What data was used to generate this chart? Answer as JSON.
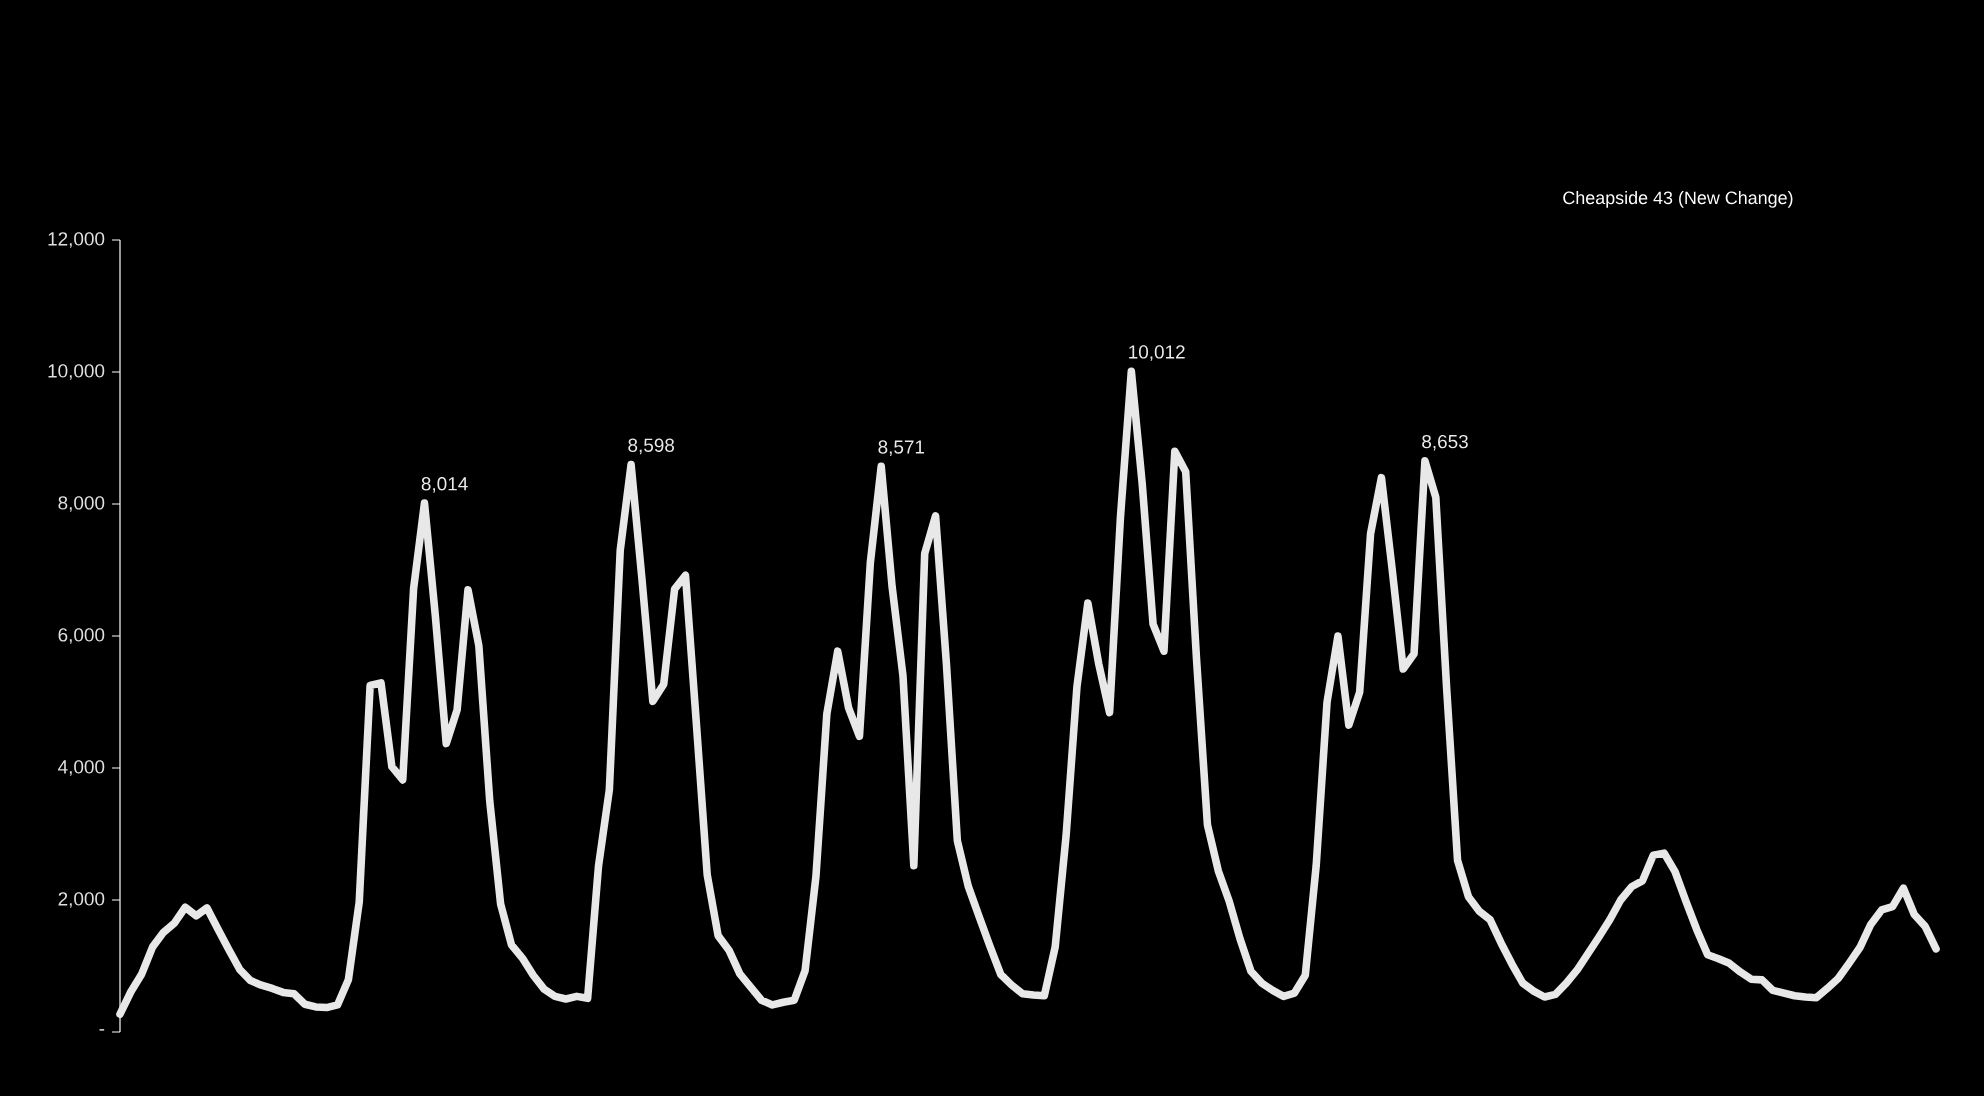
{
  "chart_data": {
    "type": "line",
    "title": "Cheapside 43 (New Change)",
    "categories": [
      null,
      null,
      null,
      null,
      null,
      null,
      null,
      null,
      null,
      null,
      null,
      null,
      null,
      null,
      null,
      null,
      null,
      null,
      null,
      null,
      null,
      null,
      null,
      null,
      null,
      null,
      null,
      null,
      null,
      null,
      null,
      null,
      null,
      null,
      null,
      null,
      null,
      null,
      null,
      null,
      null,
      null,
      null,
      null,
      null,
      null,
      null,
      null,
      null,
      null,
      null,
      null,
      null,
      null,
      null,
      null,
      null,
      null,
      null,
      null,
      null,
      null,
      null,
      null,
      null,
      null,
      null,
      null,
      null,
      null,
      null,
      null,
      null,
      null,
      null,
      null,
      null,
      null,
      null,
      null,
      null,
      null,
      null,
      null,
      null,
      null,
      null,
      null,
      null,
      null,
      null,
      null,
      null,
      null,
      null,
      null,
      null,
      null,
      null,
      null,
      null,
      null,
      null,
      null,
      null,
      null,
      null,
      null,
      null,
      null,
      null,
      null,
      null,
      null,
      null,
      null,
      null,
      null,
      null,
      null,
      null,
      null,
      null,
      null,
      null,
      null,
      null,
      null,
      null,
      null,
      null,
      null,
      null,
      null,
      null,
      null,
      null,
      null,
      null,
      null,
      null,
      null,
      null,
      null,
      null,
      null,
      null,
      null,
      null,
      null,
      null,
      null,
      null,
      null,
      null,
      null,
      null,
      null,
      null,
      null,
      null,
      null,
      null,
      null,
      null,
      null,
      null,
      null
    ],
    "values": [
      270,
      610,
      880,
      1290,
      1510,
      1650,
      1890,
      1760,
      1880,
      1560,
      1250,
      950,
      780,
      710,
      660,
      600,
      580,
      420,
      380,
      370,
      410,
      790,
      1970,
      5250,
      5290,
      4020,
      3820,
      6720,
      8014,
      6300,
      4370,
      4880,
      6700,
      5850,
      3500,
      1940,
      1320,
      1120,
      860,
      650,
      540,
      500,
      540,
      510,
      2510,
      3670,
      7300,
      8598,
      6860,
      5010,
      5270,
      6710,
      6920,
      4680,
      2380,
      1460,
      1240,
      880,
      680,
      480,
      410,
      450,
      480,
      930,
      2360,
      4820,
      5770,
      4910,
      4480,
      7110,
      8571,
      6750,
      5400,
      2520,
      7250,
      7820,
      5570,
      2900,
      2210,
      1750,
      1300,
      870,
      710,
      580,
      560,
      550,
      1290,
      2970,
      5230,
      6500,
      5580,
      4840,
      7800,
      10012,
      8310,
      6180,
      5770,
      8800,
      8490,
      5640,
      3140,
      2440,
      1980,
      1410,
      920,
      740,
      630,
      540,
      590,
      860,
      2520,
      5000,
      6000,
      4650,
      5150,
      7550,
      8400,
      6990,
      5500,
      5730,
      8653,
      8100,
      5200,
      2600,
      2050,
      1830,
      1700,
      1350,
      1030,
      740,
      620,
      530,
      570,
      740,
      940,
      1190,
      1440,
      1700,
      2000,
      2200,
      2290,
      2680,
      2710,
      2430,
      1980,
      1550,
      1170,
      1110,
      1040,
      910,
      800,
      790,
      630,
      590,
      550,
      530,
      520,
      660,
      810,
      1040,
      1280,
      1630,
      1850,
      1900,
      2180,
      1780,
      1600,
      1260
    ],
    "value_labels": [
      null,
      null,
      null,
      null,
      null,
      null,
      null,
      null,
      null,
      null,
      null,
      null,
      null,
      null,
      null,
      null,
      null,
      null,
      null,
      null,
      null,
      null,
      null,
      null,
      null,
      null,
      null,
      null,
      "8,014",
      null,
      null,
      null,
      null,
      null,
      null,
      null,
      null,
      null,
      null,
      null,
      null,
      null,
      null,
      null,
      null,
      null,
      null,
      "8,598",
      null,
      null,
      null,
      null,
      null,
      null,
      null,
      null,
      null,
      null,
      null,
      null,
      null,
      null,
      null,
      null,
      null,
      null,
      null,
      null,
      null,
      null,
      "8,571",
      null,
      null,
      null,
      null,
      null,
      null,
      null,
      null,
      null,
      null,
      null,
      null,
      null,
      null,
      null,
      null,
      null,
      null,
      null,
      null,
      null,
      null,
      "10,012",
      null,
      null,
      null,
      null,
      null,
      null,
      null,
      null,
      null,
      null,
      null,
      null,
      null,
      null,
      null,
      null,
      null,
      null,
      null,
      null,
      null,
      null,
      null,
      null,
      null,
      null,
      "8,653",
      null,
      null,
      null,
      null,
      null,
      null,
      null,
      null,
      null,
      null,
      null,
      null,
      null,
      null,
      null,
      null,
      null,
      null,
      null,
      null,
      null,
      null,
      null,
      null,
      null,
      null,
      null,
      null,
      null,
      null,
      null,
      null,
      null,
      null,
      null,
      null,
      null,
      null,
      null,
      null,
      null,
      null,
      null,
      null,
      null,
      null,
      null
    ],
    "color": "#e8e8e8",
    "ylim": [
      0,
      12000
    ],
    "yticks": [
      {
        "value": 0,
        "label": "-"
      },
      {
        "value": 2000,
        "label": "2,000"
      },
      {
        "value": 4000,
        "label": "4,000"
      },
      {
        "value": 6000,
        "label": "6,000"
      },
      {
        "value": 8000,
        "label": "8,000"
      },
      {
        "value": 10000,
        "label": "10,000"
      },
      {
        "value": 12000,
        "label": "12,000"
      }
    ],
    "tick_labels": "y"
  }
}
